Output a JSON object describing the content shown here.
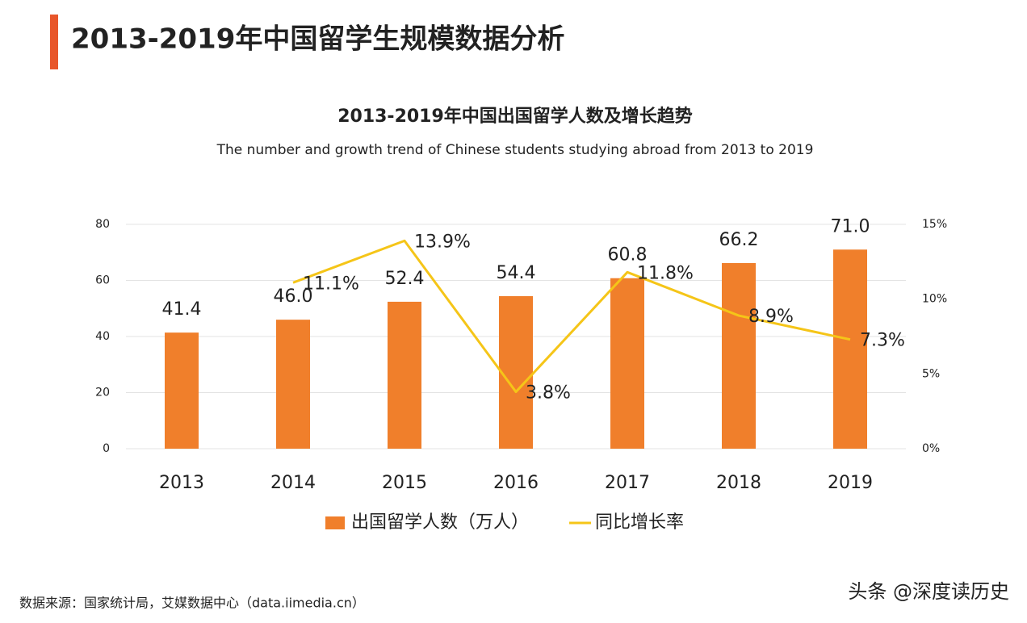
{
  "header": {
    "title": "2013-2019年中国留学生规模数据分析"
  },
  "chart_data": {
    "type": "bar",
    "title": "2013-2019年中国出国留学人数及增长趋势",
    "subtitle": "The number and growth trend of Chinese students studying abroad from 2013 to 2019",
    "categories": [
      "2013",
      "2014",
      "2015",
      "2016",
      "2017",
      "2018",
      "2019"
    ],
    "series": [
      {
        "name": "出国留学人数（万人）",
        "type": "bar",
        "color": "#f07f2b",
        "values": [
          41.4,
          46.0,
          52.4,
          54.4,
          60.8,
          66.2,
          71.0
        ],
        "value_labels": [
          "41.4",
          "46.0",
          "52.4",
          "54.4",
          "60.8",
          "66.2",
          "71.0"
        ]
      },
      {
        "name": "同比增长率",
        "type": "line",
        "axis": "y2",
        "color": "#f5c518",
        "values": [
          null,
          11.1,
          13.9,
          3.8,
          11.8,
          8.9,
          7.3
        ],
        "value_labels": [
          null,
          "11.1%",
          "13.9%",
          "3.8%",
          "11.8%",
          "8.9%",
          "7.3%"
        ]
      }
    ],
    "ylim": [
      0,
      80
    ],
    "yticks": [
      0,
      20,
      40,
      60,
      80
    ],
    "y2lim": [
      0,
      15
    ],
    "y2ticks": [
      {
        "value": 0,
        "label": "0%"
      },
      {
        "value": 5,
        "label": "5%"
      },
      {
        "value": 10,
        "label": "10%"
      },
      {
        "value": 15,
        "label": "15%"
      }
    ],
    "grid": true,
    "legend": "bottom"
  },
  "footer": {
    "source": "数据来源：国家统计局，艾媒数据中心（data.iimedia.cn）",
    "watermark": "头条 @深度读历史"
  }
}
